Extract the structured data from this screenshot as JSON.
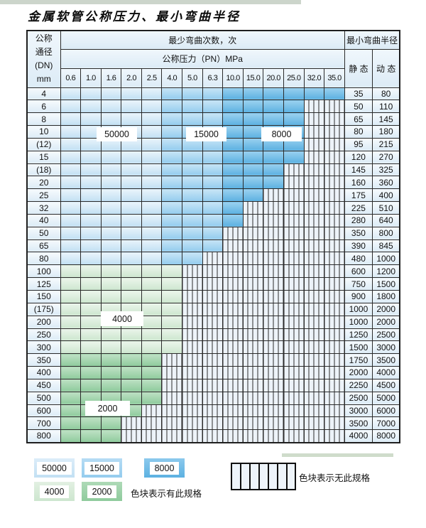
{
  "page": {
    "title": "金属软管公称压力、最小弯曲半径"
  },
  "table": {
    "header": {
      "dn_label_lines": [
        "公称",
        "通径",
        "(DN)",
        "mm"
      ],
      "bend_count_label": "最少弯曲次数，次",
      "pressure_label": "公称压力（PN）MPa",
      "pressure_columns": [
        "0.6",
        "1.0",
        "1.6",
        "2.0",
        "2.5",
        "4.0",
        "5.0",
        "6.3",
        "10.0",
        "15.0",
        "20.0",
        "25.0",
        "32.0",
        "35.0"
      ],
      "radius_label": "最小弯曲半径",
      "static_label": "静 态",
      "dynamic_label": "动 态"
    },
    "rows": [
      {
        "dn": "4",
        "cells": [
          "50000",
          "50000",
          "50000",
          "50000",
          "50000",
          "15000",
          "15000",
          "15000",
          "8000",
          "8000",
          "8000",
          "8000",
          "8000",
          "8000"
        ],
        "static": "35",
        "dynamic": "80"
      },
      {
        "dn": "6",
        "cells": [
          "50000",
          "50000",
          "50000",
          "50000",
          "50000",
          "15000",
          "15000",
          "15000",
          "8000",
          "8000",
          "8000",
          "8000",
          "none",
          "none"
        ],
        "static": "50",
        "dynamic": "110"
      },
      {
        "dn": "8",
        "cells": [
          "50000",
          "50000",
          "50000",
          "50000",
          "50000",
          "15000",
          "15000",
          "15000",
          "8000",
          "8000",
          "8000",
          "8000",
          "none",
          "none"
        ],
        "static": "65",
        "dynamic": "145"
      },
      {
        "dn": "10",
        "cells": [
          "50000",
          "50000",
          "50000",
          "50000",
          "50000",
          "15000",
          "15000",
          "15000",
          "8000",
          "8000",
          "8000",
          "8000",
          "none",
          "none"
        ],
        "static": "80",
        "dynamic": "180"
      },
      {
        "dn": "(12)",
        "cells": [
          "50000",
          "50000",
          "50000",
          "50000",
          "50000",
          "15000",
          "15000",
          "15000",
          "8000",
          "8000",
          "8000",
          "8000",
          "none",
          "none"
        ],
        "static": "95",
        "dynamic": "215"
      },
      {
        "dn": "15",
        "cells": [
          "50000",
          "50000",
          "50000",
          "50000",
          "50000",
          "15000",
          "15000",
          "15000",
          "8000",
          "8000",
          "8000",
          "8000",
          "none",
          "none"
        ],
        "static": "120",
        "dynamic": "270"
      },
      {
        "dn": "(18)",
        "cells": [
          "50000",
          "50000",
          "50000",
          "50000",
          "50000",
          "15000",
          "15000",
          "15000",
          "8000",
          "8000",
          "8000",
          "none",
          "none",
          "none"
        ],
        "static": "145",
        "dynamic": "325"
      },
      {
        "dn": "20",
        "cells": [
          "50000",
          "50000",
          "50000",
          "50000",
          "50000",
          "15000",
          "15000",
          "15000",
          "8000",
          "8000",
          "8000",
          "none",
          "none",
          "none"
        ],
        "static": "160",
        "dynamic": "360"
      },
      {
        "dn": "25",
        "cells": [
          "50000",
          "50000",
          "50000",
          "50000",
          "50000",
          "15000",
          "15000",
          "15000",
          "8000",
          "8000",
          "none",
          "none",
          "none",
          "none"
        ],
        "static": "175",
        "dynamic": "400"
      },
      {
        "dn": "32",
        "cells": [
          "50000",
          "50000",
          "50000",
          "50000",
          "50000",
          "15000",
          "15000",
          "15000",
          "8000",
          "none",
          "none",
          "none",
          "none",
          "none"
        ],
        "static": "225",
        "dynamic": "510"
      },
      {
        "dn": "40",
        "cells": [
          "50000",
          "50000",
          "50000",
          "50000",
          "50000",
          "15000",
          "15000",
          "15000",
          "8000",
          "none",
          "none",
          "none",
          "none",
          "none"
        ],
        "static": "280",
        "dynamic": "640"
      },
      {
        "dn": "50",
        "cells": [
          "50000",
          "50000",
          "50000",
          "50000",
          "50000",
          "15000",
          "15000",
          "15000",
          "none",
          "none",
          "none",
          "none",
          "none",
          "none"
        ],
        "static": "350",
        "dynamic": "800"
      },
      {
        "dn": "65",
        "cells": [
          "50000",
          "50000",
          "50000",
          "50000",
          "50000",
          "15000",
          "15000",
          "15000",
          "none",
          "none",
          "none",
          "none",
          "none",
          "none"
        ],
        "static": "390",
        "dynamic": "845"
      },
      {
        "dn": "80",
        "cells": [
          "50000",
          "50000",
          "50000",
          "50000",
          "50000",
          "15000",
          "15000",
          "none",
          "none",
          "none",
          "none",
          "none",
          "none",
          "none"
        ],
        "static": "480",
        "dynamic": "1000"
      },
      {
        "dn": "100",
        "cells": [
          "4000",
          "4000",
          "4000",
          "4000",
          "4000",
          "4000",
          "none",
          "none",
          "none",
          "none",
          "none",
          "none",
          "none",
          "none"
        ],
        "static": "600",
        "dynamic": "1200"
      },
      {
        "dn": "125",
        "cells": [
          "4000",
          "4000",
          "4000",
          "4000",
          "4000",
          "4000",
          "none",
          "none",
          "none",
          "none",
          "none",
          "none",
          "none",
          "none"
        ],
        "static": "750",
        "dynamic": "1500"
      },
      {
        "dn": "150",
        "cells": [
          "4000",
          "4000",
          "4000",
          "4000",
          "4000",
          "4000",
          "none",
          "none",
          "none",
          "none",
          "none",
          "none",
          "none",
          "none"
        ],
        "static": "900",
        "dynamic": "1800"
      },
      {
        "dn": "(175)",
        "cells": [
          "4000",
          "4000",
          "4000",
          "4000",
          "4000",
          "4000",
          "none",
          "none",
          "none",
          "none",
          "none",
          "none",
          "none",
          "none"
        ],
        "static": "1000",
        "dynamic": "2000"
      },
      {
        "dn": "200",
        "cells": [
          "4000",
          "4000",
          "4000",
          "4000",
          "4000",
          "4000",
          "none",
          "none",
          "none",
          "none",
          "none",
          "none",
          "none",
          "none"
        ],
        "static": "1000",
        "dynamic": "2000"
      },
      {
        "dn": "250",
        "cells": [
          "4000",
          "4000",
          "4000",
          "4000",
          "4000",
          "4000",
          "none",
          "none",
          "none",
          "none",
          "none",
          "none",
          "none",
          "none"
        ],
        "static": "1250",
        "dynamic": "2500"
      },
      {
        "dn": "300",
        "cells": [
          "4000",
          "4000",
          "4000",
          "4000",
          "4000",
          "4000",
          "none",
          "none",
          "none",
          "none",
          "none",
          "none",
          "none",
          "none"
        ],
        "static": "1500",
        "dynamic": "3000"
      },
      {
        "dn": "350",
        "cells": [
          "2000",
          "2000",
          "2000",
          "2000",
          "2000",
          "none",
          "none",
          "none",
          "none",
          "none",
          "none",
          "none",
          "none",
          "none"
        ],
        "static": "1750",
        "dynamic": "3500"
      },
      {
        "dn": "400",
        "cells": [
          "2000",
          "2000",
          "2000",
          "2000",
          "2000",
          "none",
          "none",
          "none",
          "none",
          "none",
          "none",
          "none",
          "none",
          "none"
        ],
        "static": "2000",
        "dynamic": "4000"
      },
      {
        "dn": "450",
        "cells": [
          "2000",
          "2000",
          "2000",
          "2000",
          "2000",
          "none",
          "none",
          "none",
          "none",
          "none",
          "none",
          "none",
          "none",
          "none"
        ],
        "static": "2250",
        "dynamic": "4500"
      },
      {
        "dn": "500",
        "cells": [
          "2000",
          "2000",
          "2000",
          "2000",
          "2000",
          "none",
          "none",
          "none",
          "none",
          "none",
          "none",
          "none",
          "none",
          "none"
        ],
        "static": "2500",
        "dynamic": "5000"
      },
      {
        "dn": "600",
        "cells": [
          "2000",
          "2000",
          "2000",
          "2000",
          "none",
          "none",
          "none",
          "none",
          "none",
          "none",
          "none",
          "none",
          "none",
          "none"
        ],
        "static": "3000",
        "dynamic": "6000"
      },
      {
        "dn": "700",
        "cells": [
          "2000",
          "2000",
          "2000",
          "none",
          "none",
          "none",
          "none",
          "none",
          "none",
          "none",
          "none",
          "none",
          "none",
          "none"
        ],
        "static": "3500",
        "dynamic": "7000"
      },
      {
        "dn": "800",
        "cells": [
          "2000",
          "2000",
          "2000",
          "none",
          "none",
          "none",
          "none",
          "none",
          "none",
          "none",
          "none",
          "none",
          "none",
          "none"
        ],
        "static": "4000",
        "dynamic": "8000"
      }
    ],
    "region_labels": {
      "r50000": "50000",
      "r15000": "15000",
      "r8000": "8000",
      "r4000": "4000",
      "r2000": "2000"
    }
  },
  "legend": {
    "swatches": {
      "s50000": "50000",
      "s15000": "15000",
      "s8000": "8000",
      "s4000": "4000",
      "s2000": "2000"
    },
    "has_spec_text": "色块表示有此规格",
    "no_spec_text": "色块表示无此规格"
  },
  "colors": {
    "bend_50000": "#c2e0f3",
    "bend_15000": "#94ccee",
    "bend_8000": "#5cb1e1",
    "bend_4000": "#cde6cf",
    "bend_2000": "#8fcb9d",
    "hatch_background": "#edf3f9",
    "grid_border": "#2b2b2b"
  }
}
